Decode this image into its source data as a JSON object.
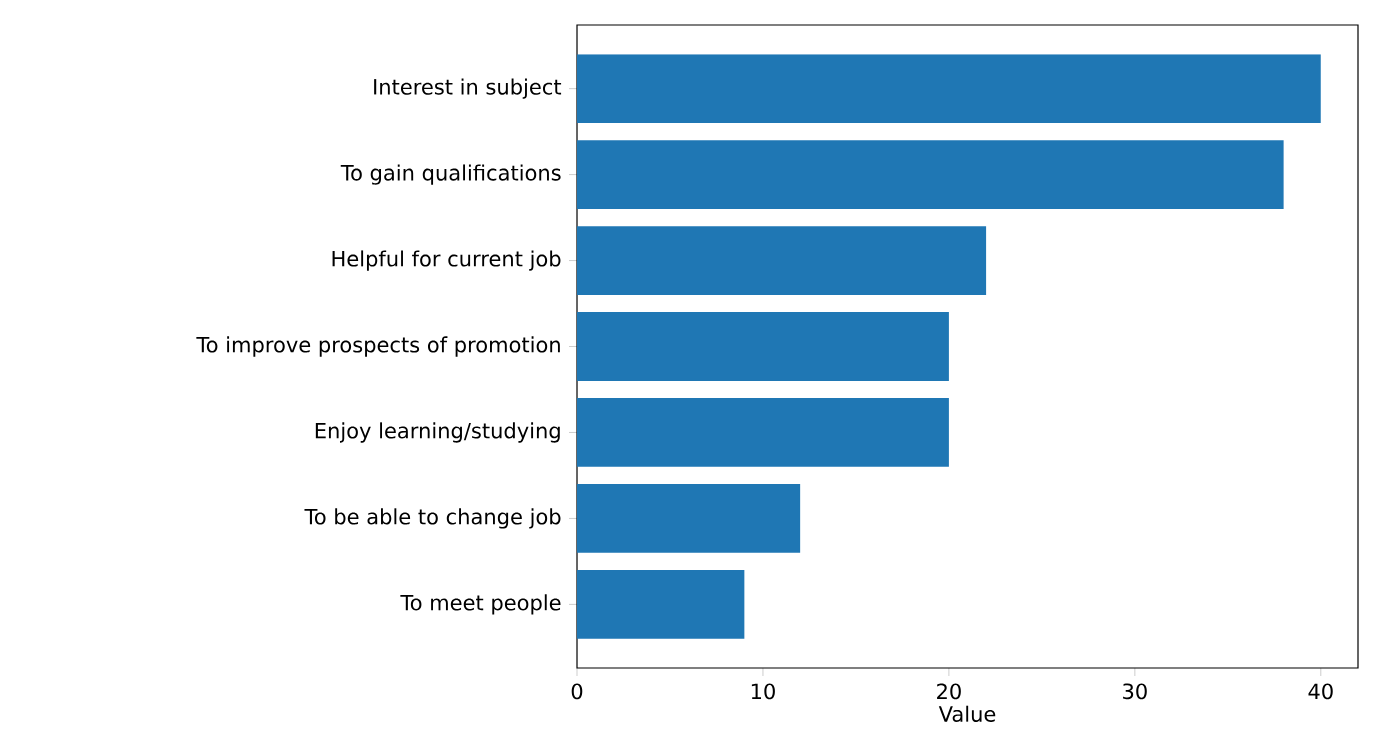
{
  "chart_data": {
    "type": "bar",
    "orientation": "horizontal",
    "xlabel": "Value",
    "categories": [
      "Interest in subject",
      "To gain qualifications",
      "Helpful for current job",
      "To improve prospects of promotion",
      "Enjoy learning/studying",
      "To be able to change job",
      "To meet people"
    ],
    "values": [
      40,
      38,
      22,
      20,
      20,
      12,
      9
    ],
    "color": "#1f77b4",
    "xlim": [
      0,
      42
    ],
    "xticks": [
      0,
      10,
      20,
      30,
      40
    ],
    "grid": false
  }
}
